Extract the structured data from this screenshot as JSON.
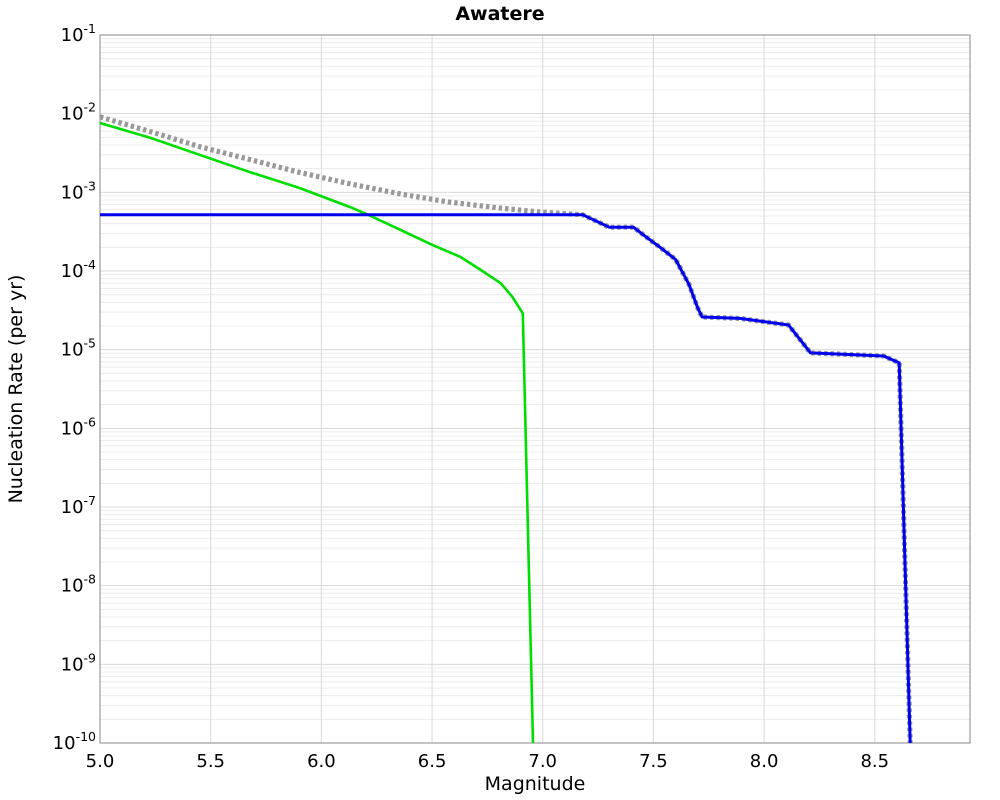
{
  "chart_data": {
    "type": "line",
    "title": "Awatere",
    "xlabel": "Magnitude",
    "ylabel": "Nucleation Rate (per yr)",
    "xlim": [
      5.0,
      8.93
    ],
    "y_exp_top": -1,
    "y_exp_bottom": -10,
    "grid": true,
    "legend": "none",
    "x_ticks": [
      {
        "value": 5.0,
        "label": "5.0"
      },
      {
        "value": 5.5,
        "label": "5.5"
      },
      {
        "value": 6.0,
        "label": "6.0"
      },
      {
        "value": 6.5,
        "label": "6.5"
      },
      {
        "value": 7.0,
        "label": "7.0"
      },
      {
        "value": 7.5,
        "label": "7.5"
      },
      {
        "value": 8.0,
        "label": "8.0"
      },
      {
        "value": 8.5,
        "label": "8.5"
      }
    ],
    "y_tick_base": "10",
    "y_tick_exponents": [
      -1,
      -2,
      -3,
      -4,
      -5,
      -6,
      -7,
      -8,
      -9,
      -10
    ],
    "x_gridlines": [
      5.5,
      6.0,
      6.5,
      7.0,
      7.5,
      8.0,
      8.5
    ],
    "colors": {
      "minor_grid": "#ececec",
      "major_grid": "#d9d9d9",
      "border": "#8a8a8a",
      "green_series": "#00dd00",
      "gray_series": "#999999",
      "blue_series": "#0000ee"
    },
    "series": [
      {
        "name": "green-tapered-gr",
        "color": "#00dd00",
        "style": "solid",
        "width": 2.6,
        "points": [
          [
            5.0,
            0.0076
          ],
          [
            5.23,
            0.0049
          ],
          [
            5.45,
            0.003
          ],
          [
            5.68,
            0.0018
          ],
          [
            5.9,
            0.00114
          ],
          [
            6.13,
            0.00065
          ],
          [
            6.21,
            0.00052
          ],
          [
            6.36,
            0.00033
          ],
          [
            6.5,
            0.000215
          ],
          [
            6.63,
            0.00015
          ],
          [
            6.72,
            0.000103
          ],
          [
            6.81,
            7e-05
          ],
          [
            6.86,
            4.8e-05
          ],
          [
            6.91,
            2.9e-05
          ],
          [
            6.956,
            1e-10
          ]
        ]
      },
      {
        "name": "gray-dotted-total",
        "color": "#999999",
        "style": "dotted",
        "width": 5.2,
        "points": [
          [
            5.0,
            0.0091
          ],
          [
            5.23,
            0.0059
          ],
          [
            5.45,
            0.0038
          ],
          [
            5.68,
            0.0026
          ],
          [
            5.9,
            0.0018
          ],
          [
            6.13,
            0.00128
          ],
          [
            6.36,
            0.00095
          ],
          [
            6.58,
            0.00075
          ],
          [
            6.81,
            0.00063
          ],
          [
            6.99,
            0.00056
          ],
          [
            7.15,
            0.000525
          ],
          [
            7.18,
            0.00052
          ],
          [
            7.3,
            0.00036
          ],
          [
            7.41,
            0.00036
          ],
          [
            7.46,
            0.00028
          ],
          [
            7.53,
            0.0002
          ],
          [
            7.6,
            0.00014
          ],
          [
            7.66,
            6.8e-05
          ],
          [
            7.7,
            3.4e-05
          ],
          [
            7.72,
            2.6e-05
          ],
          [
            7.89,
            2.5e-05
          ],
          [
            8.11,
            2.06e-05
          ],
          [
            8.21,
            9.1e-06
          ],
          [
            8.54,
            8.3e-06
          ],
          [
            8.59,
            7.2e-06
          ],
          [
            8.61,
            6.8e-06
          ],
          [
            8.66,
            1e-10
          ]
        ]
      },
      {
        "name": "blue-characteristic",
        "color": "#0000ee",
        "style": "solid",
        "width": 3,
        "points": [
          [
            5.0,
            0.00052
          ],
          [
            7.18,
            0.00052
          ],
          [
            7.3,
            0.00036
          ],
          [
            7.41,
            0.00036
          ],
          [
            7.46,
            0.00028
          ],
          [
            7.53,
            0.0002
          ],
          [
            7.6,
            0.00014
          ],
          [
            7.66,
            6.8e-05
          ],
          [
            7.7,
            3.4e-05
          ],
          [
            7.72,
            2.6e-05
          ],
          [
            7.89,
            2.5e-05
          ],
          [
            8.11,
            2.06e-05
          ],
          [
            8.21,
            9.1e-06
          ],
          [
            8.54,
            8.3e-06
          ],
          [
            8.59,
            7.2e-06
          ],
          [
            8.61,
            6.8e-06
          ],
          [
            8.66,
            1e-10
          ]
        ]
      }
    ]
  }
}
